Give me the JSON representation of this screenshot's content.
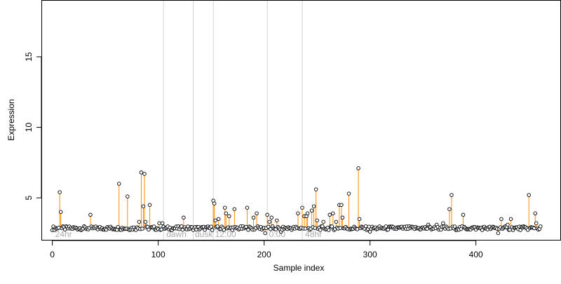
{
  "chart_data": {
    "type": "scatter",
    "title": "",
    "xlabel": "Sample index",
    "ylabel": "Expression",
    "xlim": [
      -10,
      480
    ],
    "ylim": [
      2,
      19
    ],
    "x_ticks": [
      0,
      100,
      200,
      300,
      400
    ],
    "y_ticks": [
      5,
      10,
      15
    ],
    "baseline": 2.85,
    "n_samples": 462,
    "grid": false,
    "legend": "none",
    "colors": {
      "point_stroke": "#000000",
      "point_fill": "#ffffff",
      "stem": "#ff8c00",
      "baseline_fill": "#b0c4de",
      "divider": "#d3d3d3",
      "phase_label": "#aaaaaa"
    },
    "dividers": [
      105,
      133,
      152,
      203,
      236
    ],
    "phase_labels": [
      {
        "text": "24hr",
        "x": 2
      },
      {
        "text": "dawn",
        "x": 107
      },
      {
        "text": "dusk",
        "x": 134
      },
      {
        "text": "12:00",
        "x": 153
      },
      {
        "text": "0:00",
        "x": 204
      },
      {
        "text": "48hr",
        "x": 238
      }
    ],
    "peaks": [
      {
        "x": 7,
        "y": 5.4
      },
      {
        "x": 8,
        "y": 4.0
      },
      {
        "x": 36,
        "y": 3.8
      },
      {
        "x": 63,
        "y": 6.0
      },
      {
        "x": 71,
        "y": 5.1
      },
      {
        "x": 82,
        "y": 3.3
      },
      {
        "x": 84,
        "y": 6.8
      },
      {
        "x": 86,
        "y": 4.4
      },
      {
        "x": 87,
        "y": 6.7
      },
      {
        "x": 88,
        "y": 3.3
      },
      {
        "x": 92,
        "y": 4.5
      },
      {
        "x": 101,
        "y": 3.2
      },
      {
        "x": 104,
        "y": 3.2
      },
      {
        "x": 124,
        "y": 3.6
      },
      {
        "x": 152,
        "y": 4.8
      },
      {
        "x": 153,
        "y": 4.6
      },
      {
        "x": 154,
        "y": 3.4
      },
      {
        "x": 157,
        "y": 3.5
      },
      {
        "x": 163,
        "y": 4.3
      },
      {
        "x": 164,
        "y": 3.9
      },
      {
        "x": 167,
        "y": 3.7
      },
      {
        "x": 172,
        "y": 4.2
      },
      {
        "x": 184,
        "y": 4.3
      },
      {
        "x": 190,
        "y": 3.6
      },
      {
        "x": 193,
        "y": 3.9
      },
      {
        "x": 201,
        "y": 3.5
      },
      {
        "x": 203,
        "y": 3.8
      },
      {
        "x": 205,
        "y": 3.3
      },
      {
        "x": 207,
        "y": 3.6
      },
      {
        "x": 212,
        "y": 3.4
      },
      {
        "x": 232,
        "y": 3.9
      },
      {
        "x": 236,
        "y": 4.3
      },
      {
        "x": 238,
        "y": 3.7
      },
      {
        "x": 240,
        "y": 3.7
      },
      {
        "x": 241,
        "y": 3.9
      },
      {
        "x": 245,
        "y": 4.1
      },
      {
        "x": 247,
        "y": 4.4
      },
      {
        "x": 249,
        "y": 5.6
      },
      {
        "x": 250,
        "y": 3.4
      },
      {
        "x": 256,
        "y": 3.3
      },
      {
        "x": 262,
        "y": 3.8
      },
      {
        "x": 265,
        "y": 3.9
      },
      {
        "x": 268,
        "y": 3.3
      },
      {
        "x": 271,
        "y": 4.5
      },
      {
        "x": 273,
        "y": 4.5
      },
      {
        "x": 274,
        "y": 3.6
      },
      {
        "x": 280,
        "y": 5.3
      },
      {
        "x": 289,
        "y": 7.1
      },
      {
        "x": 290,
        "y": 3.5
      },
      {
        "x": 300,
        "y": 3.4
      },
      {
        "x": 355,
        "y": 3.1
      },
      {
        "x": 363,
        "y": 3.1
      },
      {
        "x": 369,
        "y": 3.2
      },
      {
        "x": 375,
        "y": 4.2
      },
      {
        "x": 377,
        "y": 5.2
      },
      {
        "x": 388,
        "y": 3.8
      },
      {
        "x": 424,
        "y": 3.5
      },
      {
        "x": 430,
        "y": 3.1
      },
      {
        "x": 433,
        "y": 3.5
      },
      {
        "x": 450,
        "y": 5.2
      },
      {
        "x": 456,
        "y": 3.9
      },
      {
        "x": 457,
        "y": 3.2
      }
    ],
    "dips": [
      {
        "x": 201,
        "y": 2.5
      },
      {
        "x": 216,
        "y": 2.6
      },
      {
        "x": 300,
        "y": 2.6
      },
      {
        "x": 421,
        "y": 2.5
      }
    ]
  }
}
